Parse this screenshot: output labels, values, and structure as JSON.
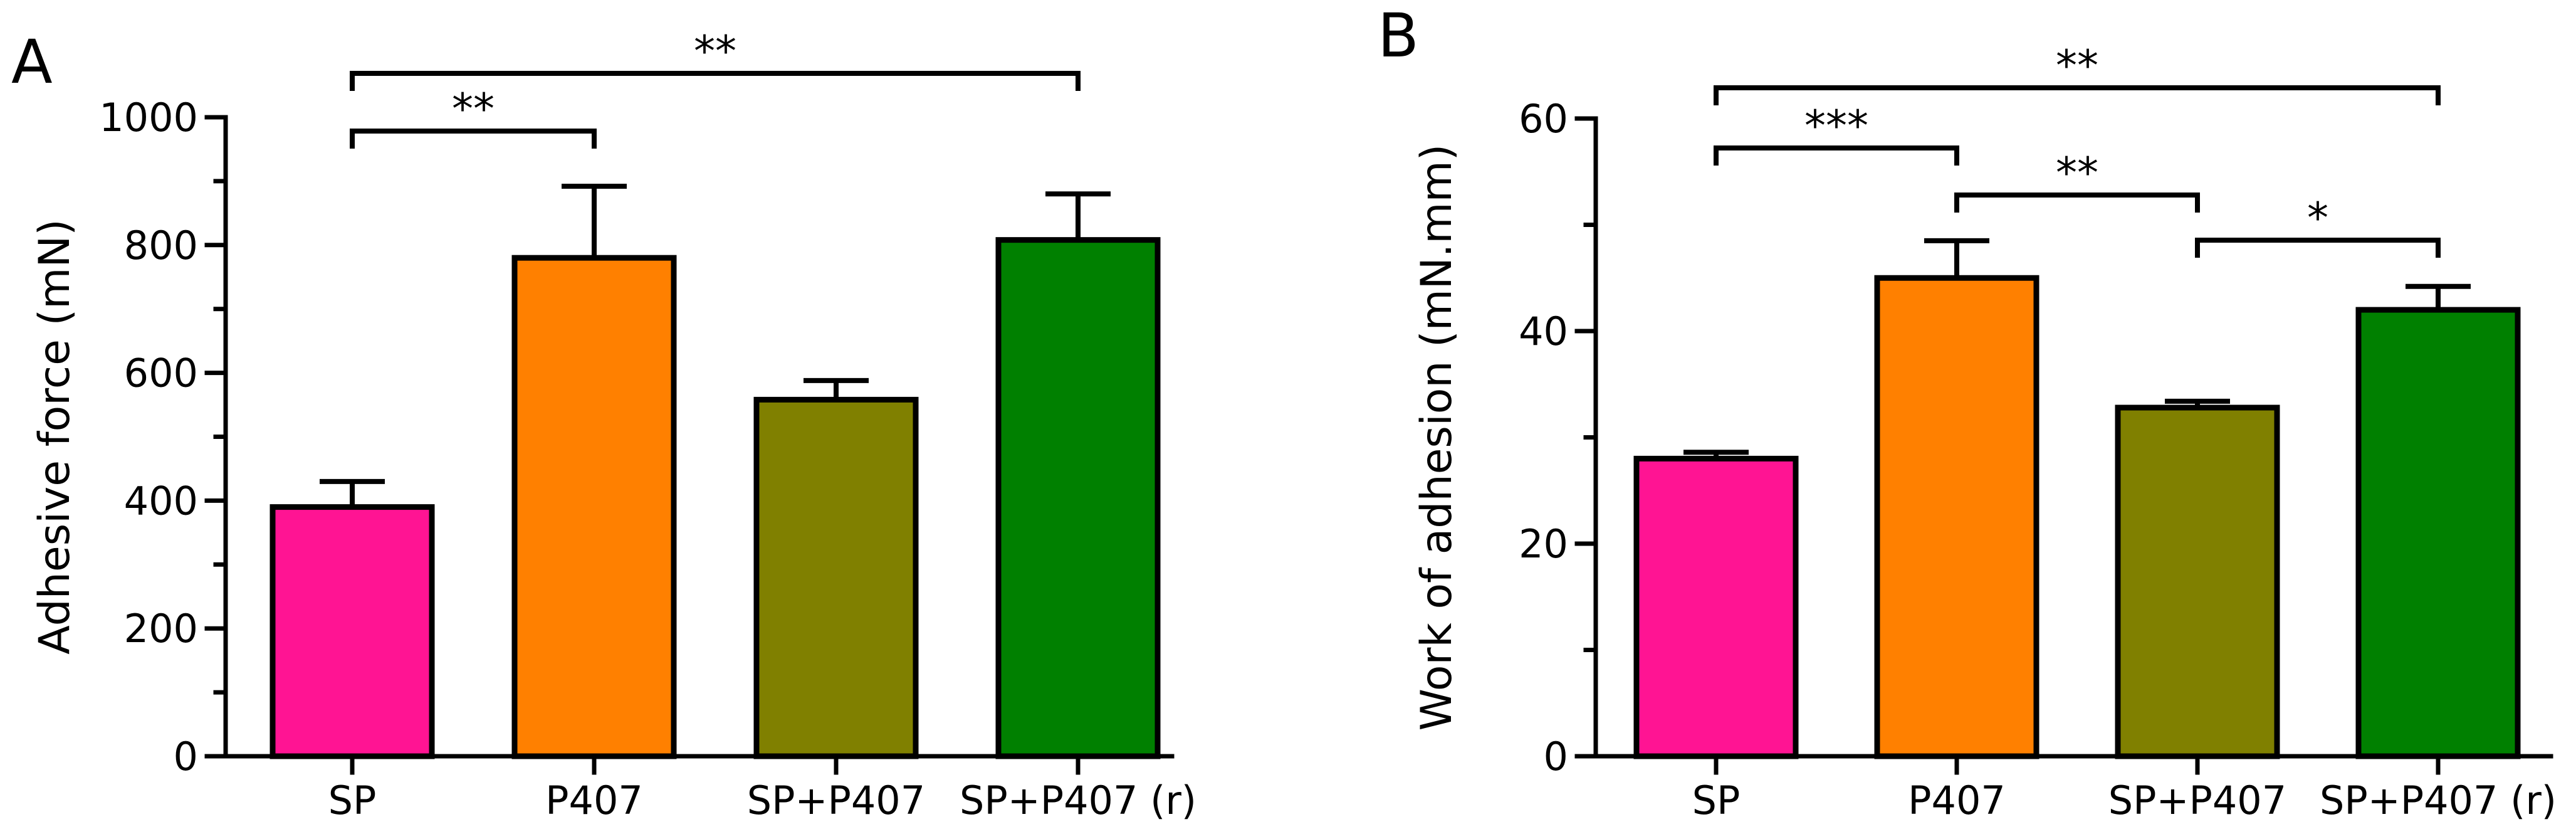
{
  "chart_data": [
    {
      "panel": "A",
      "type": "bar",
      "title": "",
      "xlabel": "",
      "ylabel": "Adhesive force (mN)",
      "ylim": [
        0,
        1000
      ],
      "yticks": [
        0,
        200,
        400,
        600,
        800,
        1000
      ],
      "yticklabels": [
        "0",
        "200",
        "400",
        "600",
        "800",
        "1000"
      ],
      "minor_ticks": true,
      "categories": [
        "SP",
        "P407",
        "SP+P407",
        "SP+P407 (r)"
      ],
      "values": [
        390,
        780,
        558,
        808
      ],
      "errors": [
        40,
        112,
        30,
        72
      ],
      "colors": [
        "#ff1493",
        "#ff8000",
        "#808000",
        "#008000"
      ],
      "significance": [
        {
          "from": 0,
          "to": 1,
          "label": "**"
        },
        {
          "from": 0,
          "to": 3,
          "label": "**"
        }
      ]
    },
    {
      "panel": "B",
      "type": "bar",
      "title": "",
      "xlabel": "",
      "ylabel": "Work of adhesion (mN.mm)",
      "ylim": [
        0,
        60
      ],
      "yticks": [
        0,
        20,
        40,
        60
      ],
      "yticklabels": [
        "0",
        "20",
        "40",
        "60"
      ],
      "minor_ticks": true,
      "categories": [
        "SP",
        "P407",
        "SP+P407",
        "SP+P407 (r)"
      ],
      "values": [
        28,
        45,
        32.8,
        42
      ],
      "errors": [
        0.6,
        3.5,
        0.6,
        2.2
      ],
      "colors": [
        "#ff1493",
        "#ff8000",
        "#808000",
        "#008000"
      ],
      "significance": [
        {
          "from": 0,
          "to": 1,
          "label": "***"
        },
        {
          "from": 1,
          "to": 2,
          "label": "**"
        },
        {
          "from": 2,
          "to": 3,
          "label": "*"
        },
        {
          "from": 0,
          "to": 3,
          "label": "**"
        }
      ]
    }
  ]
}
